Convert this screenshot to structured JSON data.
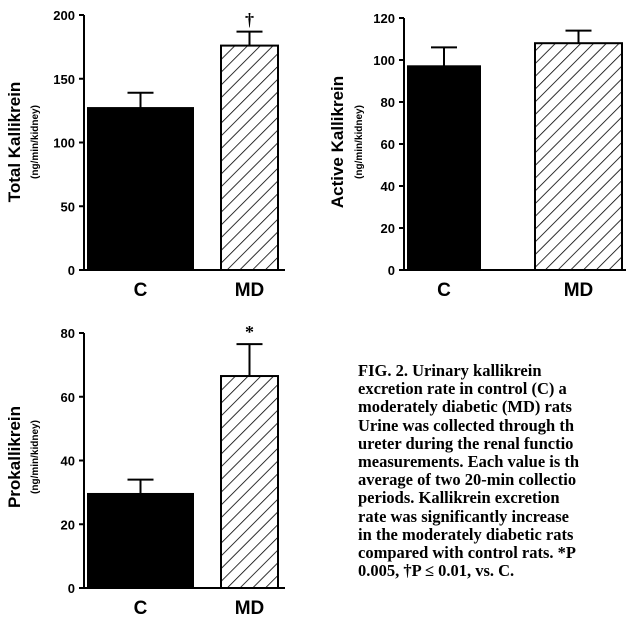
{
  "chart_data": [
    {
      "type": "bar",
      "ylabel": "Total Kallikrein",
      "yunit": "(ng/min/kidney)",
      "categories": [
        "C",
        "MD"
      ],
      "values": [
        127,
        176
      ],
      "errors": [
        12,
        11
      ],
      "ylim": [
        0,
        200
      ],
      "yticks": [
        0,
        50,
        100,
        150,
        200
      ],
      "fills": [
        "solid",
        "hatched"
      ],
      "significance": [
        "",
        "†"
      ]
    },
    {
      "type": "bar",
      "ylabel": "Active Kallikrein",
      "yunit": "(ng/min/kidney)",
      "categories": [
        "C",
        "MD"
      ],
      "values": [
        97,
        108
      ],
      "errors": [
        9,
        6
      ],
      "ylim": [
        0,
        120
      ],
      "yticks": [
        0,
        20,
        40,
        60,
        80,
        100,
        120
      ],
      "fills": [
        "solid",
        "hatched"
      ],
      "significance": [
        "",
        ""
      ]
    },
    {
      "type": "bar",
      "ylabel": "Prokallikrein",
      "yunit": "(ng/min/kidney)",
      "categories": [
        "C",
        "MD"
      ],
      "values": [
        29.5,
        66.5
      ],
      "errors": [
        4.5,
        10
      ],
      "ylim": [
        0,
        80
      ],
      "yticks": [
        0,
        20,
        40,
        60,
        80
      ],
      "fills": [
        "solid",
        "hatched"
      ],
      "significance": [
        "",
        "*"
      ]
    }
  ],
  "caption": [
    "FIG. 2. Urinary kallikrein",
    "excretion rate in control (C) a",
    "moderately diabetic (MD) rats",
    "Urine was collected through th",
    "ureter during the renal functio",
    "measurements. Each value is th",
    "average of two 20-min collectio",
    "periods. Kallikrein excretion",
    "rate was significantly increase",
    "in the moderately diabetic rats",
    "compared with control rats. *P",
    "0.005, †P ≤ 0.01, vs. C."
  ]
}
